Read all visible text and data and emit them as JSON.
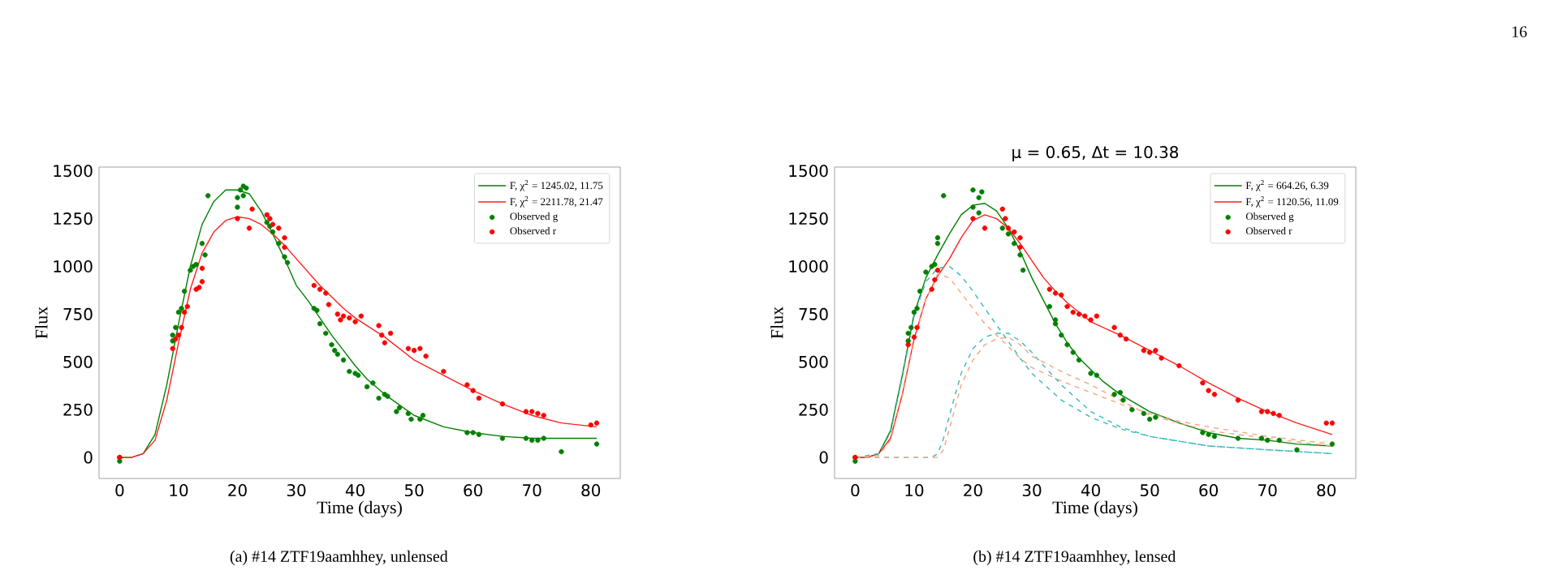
{
  "chart_data": [
    {
      "type": "scatter",
      "xlabel": "Time (days)",
      "ylabel": "Flux",
      "xlim": [
        -3.5,
        85
      ],
      "ylim": [
        -110,
        1520
      ],
      "xticks": [
        0,
        10,
        20,
        30,
        40,
        50,
        60,
        70,
        80
      ],
      "yticks": [
        0,
        250,
        500,
        750,
        1000,
        1250,
        1500
      ],
      "legend": "top right",
      "annotations": [
        "(a) #14 ZTF19aamhhey, unlensed"
      ],
      "series": [
        {
          "type": "line",
          "name": "F, χ$^{2}$ = 1245.02, 11.75",
          "color": "#008000",
          "marker": "none",
          "line_style": "solid",
          "x": [
            0,
            2,
            4,
            6,
            8,
            10,
            12,
            14,
            16,
            18,
            20,
            22,
            24,
            26,
            28,
            30,
            32,
            34,
            36,
            38,
            40,
            42,
            45,
            50,
            55,
            60,
            65,
            70,
            75,
            81
          ],
          "values": [
            0,
            0,
            20,
            120,
            380,
            700,
            1000,
            1220,
            1340,
            1400,
            1400,
            1380,
            1290,
            1170,
            1040,
            900,
            820,
            730,
            640,
            560,
            480,
            410,
            330,
            220,
            160,
            130,
            110,
            100,
            100,
            100
          ]
        },
        {
          "type": "line",
          "name": "F, χ$^{2}$ = 2211.78, 21.47",
          "color": "#ff2020",
          "marker": "none",
          "line_style": "solid",
          "x": [
            0,
            2,
            4,
            6,
            8,
            10,
            12,
            14,
            16,
            18,
            20,
            22,
            24,
            26,
            28,
            30,
            32,
            34,
            36,
            38,
            40,
            45,
            50,
            55,
            60,
            65,
            70,
            75,
            81
          ],
          "values": [
            0,
            0,
            20,
            90,
            300,
            600,
            880,
            1070,
            1180,
            1240,
            1260,
            1250,
            1220,
            1170,
            1110,
            1040,
            970,
            900,
            840,
            780,
            730,
            630,
            510,
            430,
            350,
            280,
            220,
            180,
            160
          ]
        },
        {
          "name": "Observed g",
          "color": "#008000",
          "marker": "circle",
          "x": [
            0,
            0,
            9,
            9,
            9.5,
            10,
            10.5,
            11,
            12,
            12.5,
            13,
            14,
            14.5,
            15,
            20,
            20,
            20.5,
            21,
            21.5,
            21,
            25,
            25.5,
            26,
            27,
            28,
            28.5,
            33,
            33.5,
            34,
            35,
            36,
            36.5,
            37,
            38,
            39,
            40,
            40.5,
            42,
            43,
            44,
            45,
            45.5,
            47,
            47.5,
            49,
            49.5,
            51,
            51.5,
            59,
            60,
            61,
            65,
            69,
            70,
            71,
            72,
            75,
            81
          ],
          "values": [
            -20,
            0,
            610,
            640,
            680,
            760,
            780,
            870,
            980,
            1000,
            1010,
            1120,
            1060,
            1370,
            1310,
            1360,
            1400,
            1370,
            1410,
            1420,
            1230,
            1210,
            1180,
            1120,
            1050,
            1020,
            780,
            770,
            700,
            650,
            590,
            560,
            540,
            510,
            450,
            440,
            430,
            370,
            390,
            310,
            330,
            320,
            240,
            260,
            230,
            200,
            200,
            220,
            130,
            130,
            120,
            100,
            100,
            90,
            90,
            100,
            30,
            70
          ]
        },
        {
          "name": "Observed r",
          "color": "#ff0000",
          "marker": "circle",
          "x": [
            0,
            9,
            9.5,
            10,
            10.5,
            11,
            11.5,
            13,
            13.5,
            14,
            14,
            20,
            22,
            22.5,
            25,
            25.5,
            26,
            27,
            28,
            28,
            33,
            34,
            35,
            35.5,
            37,
            37.5,
            38,
            39,
            40,
            41,
            44,
            44.5,
            45,
            46,
            49,
            50,
            51,
            52,
            55,
            59,
            60,
            61,
            65,
            69,
            70,
            71,
            72,
            80,
            81
          ],
          "values": [
            0,
            570,
            620,
            640,
            680,
            760,
            790,
            880,
            890,
            920,
            990,
            1250,
            1200,
            1300,
            1270,
            1250,
            1220,
            1200,
            1150,
            1100,
            900,
            880,
            860,
            800,
            750,
            720,
            740,
            730,
            710,
            740,
            690,
            640,
            600,
            650,
            570,
            560,
            570,
            530,
            450,
            380,
            350,
            310,
            280,
            240,
            240,
            230,
            220,
            170,
            180
          ]
        }
      ]
    },
    {
      "type": "scatter",
      "title": "μ = 0.65, Δt = 10.38",
      "xlabel": "Time (days)",
      "ylabel": "Flux",
      "xlim": [
        -3.5,
        85
      ],
      "ylim": [
        -110,
        1520
      ],
      "xticks": [
        0,
        10,
        20,
        30,
        40,
        50,
        60,
        70,
        80
      ],
      "yticks": [
        0,
        250,
        500,
        750,
        1000,
        1250,
        1500
      ],
      "legend": "top right",
      "annotations": [
        "(b) #14 ZTF19aamhhey, lensed",
        "16"
      ],
      "series": [
        {
          "type": "line",
          "name": "F, χ$^{2}$ = 664.26, 6.39",
          "color": "#008000",
          "marker": "none",
          "line_style": "solid",
          "x": [
            0,
            2,
            4,
            6,
            8,
            10,
            12,
            14,
            16,
            18,
            20,
            22,
            24,
            26,
            28,
            30,
            32,
            34,
            36,
            38,
            40,
            42,
            45,
            50,
            55,
            60,
            65,
            70,
            75,
            81
          ],
          "values": [
            0,
            0,
            20,
            140,
            430,
            750,
            940,
            1060,
            1170,
            1270,
            1320,
            1330,
            1290,
            1200,
            1080,
            940,
            820,
            700,
            600,
            520,
            460,
            400,
            330,
            240,
            180,
            130,
            100,
            90,
            70,
            60
          ]
        },
        {
          "type": "line",
          "name": "F, χ$^{2}$ = 1120.56, 11.09",
          "color": "#ff2020",
          "marker": "none",
          "line_style": "solid",
          "x": [
            0,
            2,
            4,
            6,
            8,
            10,
            12,
            14,
            16,
            18,
            20,
            22,
            24,
            26,
            28,
            30,
            32,
            34,
            36,
            38,
            40,
            45,
            50,
            55,
            60,
            65,
            70,
            75,
            81
          ],
          "values": [
            0,
            0,
            20,
            100,
            330,
            620,
            830,
            950,
            1040,
            1150,
            1240,
            1270,
            1250,
            1200,
            1120,
            1030,
            940,
            870,
            810,
            760,
            710,
            640,
            560,
            480,
            390,
            310,
            240,
            180,
            120
          ]
        },
        {
          "name": "Observed g",
          "color": "#008000",
          "marker": "circle",
          "x": [
            0,
            0,
            9,
            9,
            9.5,
            10,
            10.5,
            11,
            12,
            13,
            13.5,
            14,
            14,
            15,
            20,
            20,
            21,
            21.5,
            21,
            25,
            26,
            27,
            28,
            28.5,
            33,
            34,
            34,
            35,
            36,
            37,
            38,
            40,
            41,
            44,
            45,
            45.5,
            47,
            49,
            50,
            51,
            59,
            60,
            61,
            65,
            69,
            70,
            72,
            75,
            81
          ],
          "values": [
            -20,
            0,
            610,
            650,
            680,
            760,
            780,
            870,
            970,
            1000,
            1010,
            1150,
            1120,
            1370,
            1400,
            1310,
            1360,
            1390,
            1280,
            1200,
            1170,
            1120,
            1060,
            980,
            790,
            720,
            700,
            640,
            590,
            550,
            510,
            440,
            430,
            330,
            340,
            300,
            250,
            230,
            200,
            210,
            130,
            120,
            110,
            100,
            100,
            90,
            90,
            40,
            70
          ]
        },
        {
          "name": "Observed r",
          "color": "#ff0000",
          "marker": "circle",
          "x": [
            0,
            9,
            10,
            10.5,
            13,
            13.5,
            14,
            20,
            22,
            25,
            25.5,
            26,
            27,
            28,
            28,
            33,
            34,
            35,
            36,
            37,
            38,
            39,
            40,
            41,
            44,
            45,
            46,
            49,
            50,
            51,
            52,
            55,
            59,
            60,
            61,
            65,
            69,
            70,
            71,
            72,
            80,
            81
          ],
          "values": [
            0,
            590,
            630,
            680,
            880,
            930,
            980,
            1250,
            1200,
            1300,
            1250,
            1200,
            1180,
            1150,
            1100,
            880,
            860,
            850,
            790,
            760,
            750,
            740,
            720,
            740,
            680,
            640,
            620,
            560,
            550,
            560,
            520,
            480,
            390,
            350,
            330,
            300,
            240,
            240,
            230,
            220,
            180,
            180
          ]
        },
        {
          "type": "line",
          "color": "#3cb8b8",
          "marker": "none",
          "line_style": "dashed",
          "x": [
            0,
            4,
            6,
            8,
            10,
            12,
            14,
            16,
            18,
            20,
            22,
            25,
            28,
            30,
            35,
            40,
            45,
            50,
            60,
            70,
            81
          ],
          "values": [
            0,
            20,
            130,
            420,
            740,
            920,
            990,
            1000,
            950,
            870,
            780,
            650,
            520,
            440,
            300,
            210,
            150,
            110,
            60,
            40,
            20
          ]
        },
        {
          "type": "line",
          "color": "#f5a47e",
          "marker": "none",
          "line_style": "dashed",
          "x": [
            0,
            4,
            6,
            8,
            10,
            12,
            14,
            16,
            18,
            20,
            22,
            25,
            28,
            30,
            35,
            40,
            45,
            50,
            55,
            60,
            70,
            81
          ],
          "values": [
            0,
            10,
            90,
            320,
            610,
            830,
            960,
            940,
            860,
            780,
            700,
            610,
            520,
            470,
            400,
            340,
            280,
            230,
            190,
            160,
            110,
            70
          ]
        },
        {
          "type": "line",
          "color": "#3cb8b8",
          "marker": "none",
          "line_style": "dashed",
          "x": [
            0,
            13,
            14,
            15,
            16,
            18,
            20,
            22,
            24,
            26,
            28,
            30,
            32,
            35,
            40,
            45,
            50,
            60,
            70,
            81
          ],
          "values": [
            0,
            0,
            20,
            100,
            220,
            440,
            570,
            630,
            650,
            650,
            610,
            550,
            480,
            380,
            240,
            160,
            110,
            60,
            40,
            20
          ]
        },
        {
          "type": "line",
          "color": "#f5a47e",
          "marker": "none",
          "line_style": "dashed",
          "x": [
            0,
            14,
            15,
            16,
            18,
            20,
            22,
            24,
            26,
            28,
            30,
            35,
            40,
            45,
            50,
            55,
            60,
            70,
            81
          ],
          "values": [
            0,
            0,
            40,
            150,
            380,
            510,
            590,
            620,
            630,
            590,
            530,
            450,
            380,
            300,
            220,
            180,
            140,
            100,
            60
          ]
        }
      ]
    }
  ]
}
